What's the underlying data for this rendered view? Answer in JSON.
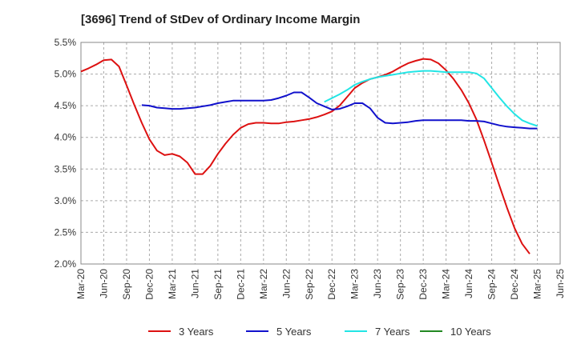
{
  "chart_data": {
    "type": "line",
    "title": "[3696]  Trend of StDev of Ordinary Income Margin",
    "xlabel": "",
    "ylabel": "",
    "x_ticks": [
      "Mar-20",
      "Jun-20",
      "Sep-20",
      "Dec-20",
      "Mar-21",
      "Jun-21",
      "Sep-21",
      "Dec-21",
      "Mar-22",
      "Jun-22",
      "Sep-22",
      "Dec-22",
      "Mar-23",
      "Jun-23",
      "Sep-23",
      "Dec-23",
      "Mar-24",
      "Jun-24",
      "Sep-24",
      "Dec-24",
      "Mar-25",
      "Jun-25"
    ],
    "y_ticks": [
      "2.0%",
      "2.5%",
      "3.0%",
      "3.5%",
      "4.0%",
      "4.5%",
      "5.0%",
      "5.5%"
    ],
    "ylim": [
      2.0,
      5.5
    ],
    "grid": true,
    "legend_position": "bottom",
    "series": [
      {
        "name": "3 Years",
        "color": "#dd1111",
        "points": [
          [
            "Mar-20",
            5.04
          ],
          [
            "Apr-20",
            5.09
          ],
          [
            "May-20",
            5.15
          ],
          [
            "Jun-20",
            5.22
          ],
          [
            "Jul-20",
            5.23
          ],
          [
            "Aug-20",
            5.12
          ],
          [
            "Sep-20",
            4.82
          ],
          [
            "Oct-20",
            4.52
          ],
          [
            "Nov-20",
            4.23
          ],
          [
            "Dec-20",
            3.97
          ],
          [
            "Jan-21",
            3.79
          ],
          [
            "Feb-21",
            3.72
          ],
          [
            "Mar-21",
            3.74
          ],
          [
            "Apr-21",
            3.7
          ],
          [
            "May-21",
            3.6
          ],
          [
            "Jun-21",
            3.42
          ],
          [
            "Jul-21",
            3.42
          ],
          [
            "Aug-21",
            3.55
          ],
          [
            "Sep-21",
            3.74
          ],
          [
            "Oct-21",
            3.9
          ],
          [
            "Nov-21",
            4.04
          ],
          [
            "Dec-21",
            4.15
          ],
          [
            "Jan-22",
            4.21
          ],
          [
            "Feb-22",
            4.23
          ],
          [
            "Mar-22",
            4.23
          ],
          [
            "Apr-22",
            4.22
          ],
          [
            "May-22",
            4.22
          ],
          [
            "Jun-22",
            4.24
          ],
          [
            "Jul-22",
            4.25
          ],
          [
            "Aug-22",
            4.27
          ],
          [
            "Sep-22",
            4.29
          ],
          [
            "Oct-22",
            4.32
          ],
          [
            "Nov-22",
            4.36
          ],
          [
            "Dec-22",
            4.41
          ],
          [
            "Jan-23",
            4.5
          ],
          [
            "Feb-23",
            4.64
          ],
          [
            "Mar-23",
            4.78
          ],
          [
            "Apr-23",
            4.86
          ],
          [
            "May-23",
            4.92
          ],
          [
            "Jun-23",
            4.95
          ],
          [
            "Jul-23",
            4.99
          ],
          [
            "Aug-23",
            5.04
          ],
          [
            "Sep-23",
            5.11
          ],
          [
            "Oct-23",
            5.17
          ],
          [
            "Nov-23",
            5.21
          ],
          [
            "Dec-23",
            5.24
          ],
          [
            "Jan-24",
            5.23
          ],
          [
            "Feb-24",
            5.17
          ],
          [
            "Mar-24",
            5.06
          ],
          [
            "Apr-24",
            4.92
          ],
          [
            "May-24",
            4.75
          ],
          [
            "Jun-24",
            4.54
          ],
          [
            "Jul-24",
            4.28
          ],
          [
            "Aug-24",
            3.95
          ],
          [
            "Sep-24",
            3.6
          ],
          [
            "Oct-24",
            3.24
          ],
          [
            "Nov-24",
            2.89
          ],
          [
            "Dec-24",
            2.57
          ],
          [
            "Jan-25",
            2.32
          ],
          [
            "Feb-25",
            2.16
          ]
        ]
      },
      {
        "name": "5 Years",
        "color": "#1111cc",
        "points": [
          [
            "Nov-20",
            4.51
          ],
          [
            "Dec-20",
            4.5
          ],
          [
            "Jan-21",
            4.47
          ],
          [
            "Feb-21",
            4.46
          ],
          [
            "Mar-21",
            4.45
          ],
          [
            "Apr-21",
            4.45
          ],
          [
            "May-21",
            4.46
          ],
          [
            "Jun-21",
            4.47
          ],
          [
            "Jul-21",
            4.49
          ],
          [
            "Aug-21",
            4.51
          ],
          [
            "Sep-21",
            4.54
          ],
          [
            "Oct-21",
            4.56
          ],
          [
            "Nov-21",
            4.58
          ],
          [
            "Dec-21",
            4.58
          ],
          [
            "Jan-22",
            4.58
          ],
          [
            "Feb-22",
            4.58
          ],
          [
            "Mar-22",
            4.58
          ],
          [
            "Apr-22",
            4.59
          ],
          [
            "May-22",
            4.62
          ],
          [
            "Jun-22",
            4.66
          ],
          [
            "Jul-22",
            4.71
          ],
          [
            "Aug-22",
            4.71
          ],
          [
            "Sep-22",
            4.63
          ],
          [
            "Oct-22",
            4.54
          ],
          [
            "Nov-22",
            4.49
          ],
          [
            "Dec-22",
            4.44
          ],
          [
            "Jan-23",
            4.45
          ],
          [
            "Feb-23",
            4.49
          ],
          [
            "Mar-23",
            4.54
          ],
          [
            "Apr-23",
            4.54
          ],
          [
            "May-23",
            4.46
          ],
          [
            "Jun-23",
            4.31
          ],
          [
            "Jul-23",
            4.23
          ],
          [
            "Aug-23",
            4.22
          ],
          [
            "Sep-23",
            4.23
          ],
          [
            "Oct-23",
            4.24
          ],
          [
            "Nov-23",
            4.26
          ],
          [
            "Dec-23",
            4.27
          ],
          [
            "Jan-24",
            4.27
          ],
          [
            "Feb-24",
            4.27
          ],
          [
            "Mar-24",
            4.27
          ],
          [
            "Apr-24",
            4.27
          ],
          [
            "May-24",
            4.27
          ],
          [
            "Jun-24",
            4.26
          ],
          [
            "Jul-24",
            4.26
          ],
          [
            "Aug-24",
            4.25
          ],
          [
            "Sep-24",
            4.22
          ],
          [
            "Oct-24",
            4.19
          ],
          [
            "Nov-24",
            4.17
          ],
          [
            "Dec-24",
            4.16
          ],
          [
            "Jan-25",
            4.15
          ],
          [
            "Feb-25",
            4.14
          ],
          [
            "Mar-25",
            4.14
          ]
        ]
      },
      {
        "name": "7 Years",
        "color": "#22e5e5",
        "points": [
          [
            "Nov-22",
            4.56
          ],
          [
            "Dec-22",
            4.62
          ],
          [
            "Jan-23",
            4.68
          ],
          [
            "Feb-23",
            4.75
          ],
          [
            "Mar-23",
            4.83
          ],
          [
            "Apr-23",
            4.88
          ],
          [
            "May-23",
            4.92
          ],
          [
            "Jun-23",
            4.95
          ],
          [
            "Jul-23",
            4.97
          ],
          [
            "Aug-23",
            4.99
          ],
          [
            "Sep-23",
            5.01
          ],
          [
            "Oct-23",
            5.03
          ],
          [
            "Nov-23",
            5.04
          ],
          [
            "Dec-23",
            5.05
          ],
          [
            "Jan-24",
            5.05
          ],
          [
            "Feb-24",
            5.04
          ],
          [
            "Mar-24",
            5.03
          ],
          [
            "Apr-24",
            5.03
          ],
          [
            "May-24",
            5.03
          ],
          [
            "Jun-24",
            5.03
          ],
          [
            "Jul-24",
            5.01
          ],
          [
            "Aug-24",
            4.93
          ],
          [
            "Sep-24",
            4.78
          ],
          [
            "Oct-24",
            4.63
          ],
          [
            "Nov-24",
            4.49
          ],
          [
            "Dec-24",
            4.37
          ],
          [
            "Jan-25",
            4.27
          ],
          [
            "Feb-25",
            4.22
          ],
          [
            "Mar-25",
            4.18
          ]
        ]
      },
      {
        "name": "10 Years",
        "color": "#228822",
        "points": []
      }
    ]
  }
}
